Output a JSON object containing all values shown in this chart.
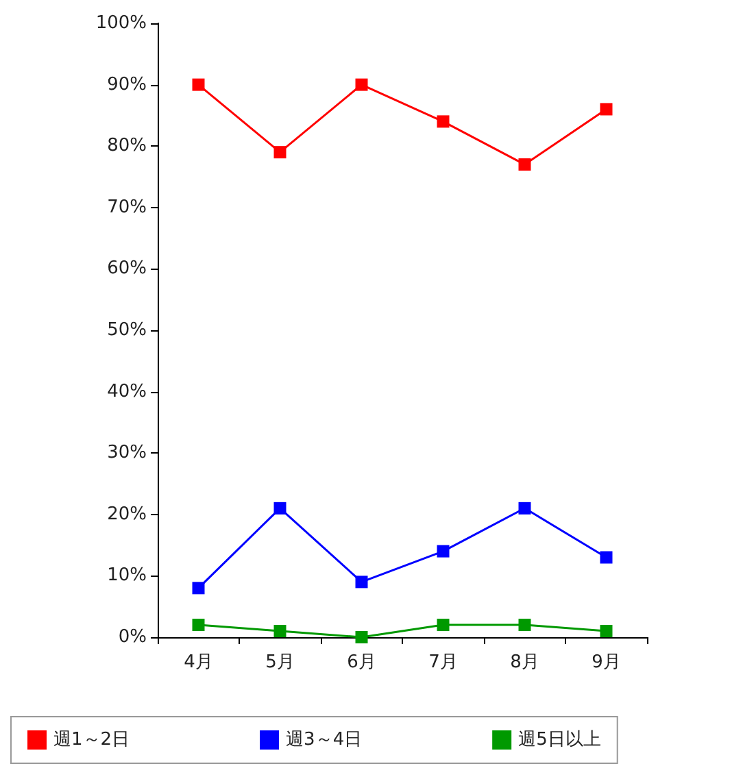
{
  "chart_data": {
    "type": "line",
    "categories": [
      "4月",
      "5月",
      "6月",
      "7月",
      "8月",
      "9月"
    ],
    "series": [
      {
        "name": "週1～2日",
        "color": "#ff0000",
        "values": [
          90,
          79,
          90,
          84,
          77,
          86
        ]
      },
      {
        "name": "週3～4日",
        "color": "#0000ff",
        "values": [
          8,
          21,
          9,
          14,
          21,
          13
        ]
      },
      {
        "name": "週5日以上",
        "color": "#009900",
        "values": [
          2,
          1,
          0,
          2,
          2,
          1
        ]
      }
    ],
    "ylim": [
      0,
      100
    ],
    "yticks": [
      {
        "value": 0,
        "label": "0%"
      },
      {
        "value": 10,
        "label": "10%"
      },
      {
        "value": 20,
        "label": "20%"
      },
      {
        "value": 30,
        "label": "30%"
      },
      {
        "value": 40,
        "label": "40%"
      },
      {
        "value": 50,
        "label": "50%"
      },
      {
        "value": 60,
        "label": "60%"
      },
      {
        "value": 70,
        "label": "70%"
      },
      {
        "value": 80,
        "label": "80%"
      },
      {
        "value": 90,
        "label": "90%"
      },
      {
        "value": 100,
        "label": "100%"
      }
    ],
    "grid": false,
    "legend": "bottom",
    "marker": "square",
    "line_style": "solid"
  }
}
